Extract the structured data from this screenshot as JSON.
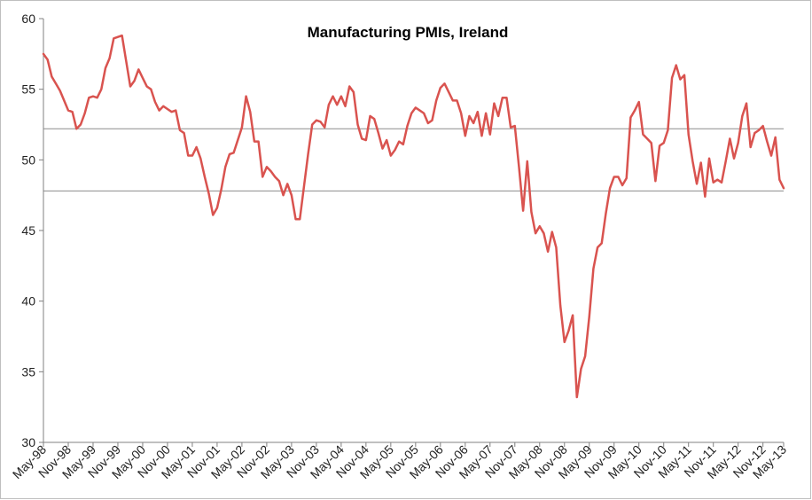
{
  "chart_data": {
    "type": "line",
    "title": "Manufacturing PMIs, Ireland",
    "xlabel": "",
    "ylabel": "",
    "ylim": [
      30,
      60
    ],
    "y_ticks": [
      30,
      35,
      40,
      45,
      50,
      55,
      60
    ],
    "x_tick_labels": [
      "May-98",
      "Nov-98",
      "May-99",
      "Nov-99",
      "May-00",
      "Nov-00",
      "May-01",
      "Nov-01",
      "May-02",
      "Nov-02",
      "May-03",
      "Nov-03",
      "May-04",
      "Nov-04",
      "May-05",
      "Nov-05",
      "May-06",
      "Nov-06",
      "May-07",
      "Nov-07",
      "May-08",
      "Nov-08",
      "May-09",
      "Nov-09",
      "May-10",
      "Nov-10",
      "May-11",
      "Nov-11",
      "May-12",
      "Nov-12",
      "May-13"
    ],
    "reference_lines": [
      52.2,
      47.8
    ],
    "grid": false,
    "legend": "none",
    "series": [
      {
        "name": "Manufacturing PMI",
        "color": "#d9534f",
        "x_start": "May-98",
        "frequency": "monthly",
        "values": [
          57.5,
          57.1,
          55.9,
          55.4,
          54.9,
          54.2,
          53.5,
          53.4,
          52.2,
          52.5,
          53.3,
          54.4,
          54.5,
          54.4,
          55.0,
          56.5,
          57.2,
          58.6,
          58.7,
          58.8,
          57.0,
          55.2,
          55.6,
          56.4,
          55.8,
          55.2,
          55.0,
          54.1,
          53.5,
          53.8,
          53.6,
          53.4,
          53.5,
          52.1,
          51.9,
          50.3,
          50.3,
          50.9,
          50.1,
          48.8,
          47.6,
          46.1,
          46.6,
          47.9,
          49.5,
          50.4,
          50.5,
          51.4,
          52.3,
          54.5,
          53.4,
          51.3,
          51.3,
          48.8,
          49.5,
          49.2,
          48.8,
          48.5,
          47.5,
          48.3,
          47.5,
          45.8,
          45.8,
          48.1,
          50.4,
          52.5,
          52.8,
          52.7,
          52.3,
          53.9,
          54.5,
          53.9,
          54.5,
          53.8,
          55.2,
          54.8,
          52.5,
          51.5,
          51.4,
          53.1,
          52.9,
          51.9,
          50.8,
          51.4,
          50.3,
          50.7,
          51.3,
          51.1,
          52.4,
          53.3,
          53.7,
          53.5,
          53.3,
          52.6,
          52.8,
          54.2,
          55.1,
          55.4,
          54.8,
          54.2,
          54.2,
          53.3,
          51.7,
          53.1,
          52.6,
          53.4,
          51.7,
          53.3,
          51.8,
          54.0,
          53.1,
          54.4,
          54.4,
          52.3,
          52.4,
          49.5,
          46.4,
          49.9,
          46.3,
          44.8,
          45.3,
          44.8,
          43.5,
          44.9,
          43.8,
          39.7,
          37.1,
          37.9,
          39.0,
          33.2,
          35.2,
          36.1,
          38.9,
          42.3,
          43.8,
          44.1,
          46.2,
          48.0,
          48.8,
          48.8,
          48.2,
          48.7,
          53.0,
          53.5,
          54.1,
          51.8,
          51.5,
          51.2,
          48.5,
          51.0,
          51.2,
          52.1,
          55.8,
          56.7,
          55.7,
          56.0,
          51.8,
          49.9,
          48.3,
          49.8,
          47.4,
          50.1,
          48.4,
          48.6,
          48.4,
          49.9,
          51.5,
          50.1,
          51.2,
          53.1,
          54.0,
          50.9,
          51.9,
          52.1,
          52.4,
          51.3,
          50.3,
          51.6,
          48.6,
          48.0
        ]
      }
    ]
  }
}
